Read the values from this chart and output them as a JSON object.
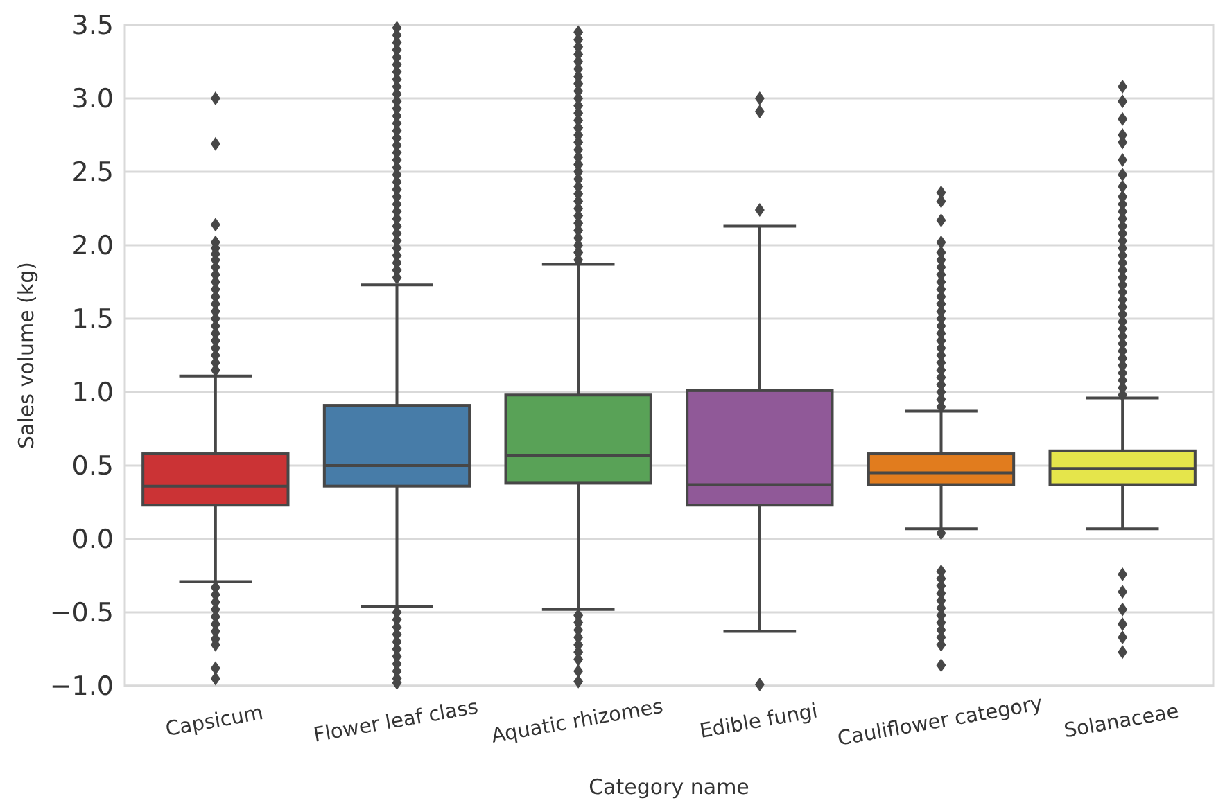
{
  "chart_data": {
    "type": "box",
    "xlabel": "Category name",
    "ylabel": "Sales volume (kg)",
    "categories": [
      "Capsicum",
      "Flower leaf class",
      "Aquatic rhizomes",
      "Edible fungi",
      "Cauliflower category",
      "Solanaceae"
    ],
    "colors": [
      "#cb3335",
      "#477ca8",
      "#59a257",
      "#905998",
      "#e17c1e",
      "#e5e54b"
    ],
    "ylim": [
      -1,
      3.5
    ],
    "yticks": [
      {
        "value": -1,
        "label": "−1.0"
      },
      {
        "value": -0.5,
        "label": "−0.5"
      },
      {
        "value": 0,
        "label": "0.0"
      },
      {
        "value": 0.5,
        "label": "0.5"
      },
      {
        "value": 1,
        "label": "1.0"
      },
      {
        "value": 1.5,
        "label": "1.5"
      },
      {
        "value": 2,
        "label": "2.0"
      },
      {
        "value": 2.5,
        "label": "2.5"
      },
      {
        "value": 3,
        "label": "3.0"
      },
      {
        "value": 3.5,
        "label": "3.5"
      }
    ],
    "grid": "y",
    "boxes": [
      {
        "low": -0.29,
        "q1": 0.23,
        "median": 0.36,
        "q3": 0.58,
        "high": 1.11,
        "outliers": [
          3.0,
          2.69,
          2.14,
          2.02,
          1.98,
          1.94,
          1.9,
          1.85,
          1.8,
          1.75,
          1.7,
          1.65,
          1.6,
          1.55,
          1.5,
          1.45,
          1.4,
          1.35,
          1.3,
          1.25,
          1.2,
          1.15,
          -0.33,
          -0.38,
          -0.43,
          -0.48,
          -0.53,
          -0.58,
          -0.63,
          -0.68,
          -0.72,
          -0.88,
          -0.95
        ]
      },
      {
        "low": -0.46,
        "q1": 0.36,
        "median": 0.5,
        "q3": 0.91,
        "high": 1.73,
        "outliers": [
          1.78,
          1.83,
          1.88,
          1.93,
          1.98,
          2.03,
          2.08,
          2.13,
          2.18,
          2.23,
          2.28,
          2.33,
          2.38,
          2.43,
          2.48,
          2.53,
          2.58,
          2.63,
          2.68,
          2.73,
          2.78,
          2.83,
          2.88,
          2.93,
          2.98,
          3.03,
          3.08,
          3.13,
          3.18,
          3.23,
          3.28,
          3.33,
          3.38,
          3.43,
          3.48,
          -0.5,
          -0.55,
          -0.6,
          -0.65,
          -0.7,
          -0.75,
          -0.8,
          -0.85,
          -0.9,
          -0.95,
          -0.98
        ]
      },
      {
        "low": -0.48,
        "q1": 0.38,
        "median": 0.57,
        "q3": 0.98,
        "high": 1.87,
        "outliers": [
          1.9,
          1.95,
          2.0,
          2.05,
          2.1,
          2.15,
          2.2,
          2.25,
          2.3,
          2.35,
          2.4,
          2.45,
          2.5,
          2.55,
          2.6,
          2.65,
          2.7,
          2.75,
          2.8,
          2.85,
          2.9,
          2.95,
          3.0,
          3.05,
          3.1,
          3.15,
          3.2,
          3.25,
          3.3,
          3.35,
          3.4,
          3.45,
          -0.52,
          -0.57,
          -0.62,
          -0.67,
          -0.72,
          -0.77,
          -0.82,
          -0.9,
          -0.97
        ]
      },
      {
        "low": -0.63,
        "q1": 0.23,
        "median": 0.37,
        "q3": 1.01,
        "high": 2.13,
        "outliers": [
          3.0,
          2.91,
          2.24,
          -0.99
        ]
      },
      {
        "low": 0.07,
        "q1": 0.37,
        "median": 0.45,
        "q3": 0.58,
        "high": 0.87,
        "outliers": [
          0.9,
          0.95,
          1.0,
          1.05,
          1.1,
          1.15,
          1.2,
          1.25,
          1.3,
          1.35,
          1.4,
          1.45,
          1.5,
          1.55,
          1.6,
          1.65,
          1.7,
          1.75,
          1.8,
          1.85,
          1.9,
          1.95,
          2.02,
          2.17,
          2.3,
          2.36,
          0.04,
          -0.22,
          -0.27,
          -0.32,
          -0.37,
          -0.42,
          -0.47,
          -0.52,
          -0.57,
          -0.62,
          -0.67,
          -0.72,
          -0.86
        ]
      },
      {
        "low": 0.07,
        "q1": 0.37,
        "median": 0.48,
        "q3": 0.6,
        "high": 0.96,
        "outliers": [
          0.98,
          1.03,
          1.08,
          1.13,
          1.18,
          1.23,
          1.28,
          1.33,
          1.38,
          1.43,
          1.48,
          1.53,
          1.58,
          1.63,
          1.68,
          1.73,
          1.78,
          1.83,
          1.88,
          1.93,
          1.98,
          2.03,
          2.08,
          2.13,
          2.18,
          2.23,
          2.28,
          2.33,
          2.4,
          2.48,
          2.58,
          2.7,
          2.75,
          2.86,
          2.98,
          3.08,
          -0.24,
          -0.36,
          -0.48,
          -0.58,
          -0.67,
          -0.77
        ]
      }
    ]
  }
}
